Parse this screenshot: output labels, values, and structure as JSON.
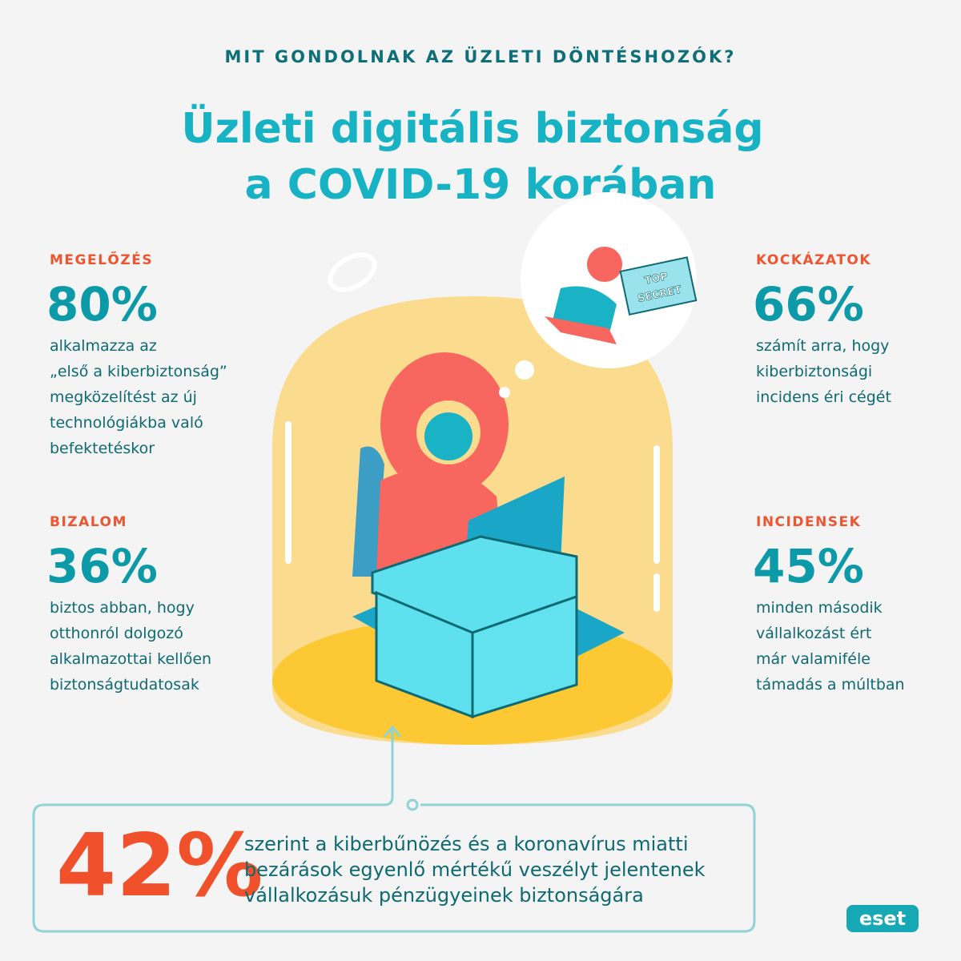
{
  "header": {
    "kicker": "MIT GONDOLNAK AZ ÜZLETI DÖNTÉSHOZÓK?",
    "title": [
      "Üzleti digitális biztonság",
      "a COVID-19 korában"
    ]
  },
  "stats": [
    {
      "label": "MEGELŐZÉS",
      "value": "80%",
      "lines": [
        "alkalmazza az",
        "„első a kiberbiztonság”",
        "megközelítést az új",
        "technológiákba való",
        "befektetéskor"
      ]
    },
    {
      "label": "KOCKÁZATOK",
      "value": "66%",
      "lines": [
        "számít arra, hogy",
        "kiberbiztonsági",
        "incidens éri cégét"
      ]
    },
    {
      "label": "BIZALOM",
      "value": "36%",
      "lines": [
        "biztos abban, hogy",
        "otthonról dolgozó",
        "alkalmazottai kellően",
        "biztonságtudatosak"
      ]
    },
    {
      "label": "INCIDENSEK",
      "value": "45%",
      "lines": [
        "minden második",
        "vállalkozást ért",
        "már valamiféle",
        "támadás a múltban"
      ]
    }
  ],
  "illustration": {
    "envelope": [
      "TOP",
      "SECRET"
    ]
  },
  "callout": {
    "value": "42%",
    "lines": [
      "szerint a kiberbűnözés és a koronavírus miatti",
      "bezárások egyenlő mértékű veszélyt jelentenek",
      "vállalkozásuk pénzügyeinek biztonságára"
    ]
  },
  "logo": "eset"
}
